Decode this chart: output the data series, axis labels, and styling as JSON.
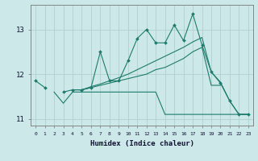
{
  "xlabel": "Humidex (Indice chaleur)",
  "x": [
    0,
    1,
    2,
    3,
    4,
    5,
    6,
    7,
    8,
    9,
    10,
    11,
    12,
    13,
    14,
    15,
    16,
    17,
    18,
    19,
    20,
    21,
    22,
    23
  ],
  "line1": [
    11.85,
    11.7,
    null,
    11.6,
    11.65,
    11.65,
    11.7,
    12.5,
    11.85,
    11.85,
    12.3,
    12.8,
    13.0,
    12.7,
    12.7,
    13.1,
    12.75,
    13.35,
    12.65,
    12.05,
    11.8,
    11.4,
    11.1,
    11.1
  ],
  "line2": [
    null,
    null,
    11.6,
    11.35,
    11.6,
    11.6,
    11.6,
    11.6,
    11.6,
    11.6,
    11.6,
    11.6,
    11.6,
    11.6,
    11.1,
    11.1,
    11.1,
    11.1,
    11.1,
    11.1,
    11.1,
    11.1,
    11.1,
    11.1
  ],
  "line3": [
    null,
    null,
    11.6,
    null,
    11.65,
    11.65,
    11.7,
    11.75,
    11.8,
    11.85,
    11.9,
    11.95,
    12.0,
    12.1,
    12.15,
    12.25,
    12.35,
    12.5,
    12.6,
    11.75,
    11.75,
    null,
    null,
    null
  ],
  "line4": [
    null,
    null,
    11.6,
    null,
    11.65,
    11.65,
    11.72,
    11.78,
    11.85,
    11.92,
    12.0,
    12.1,
    12.2,
    12.3,
    12.4,
    12.5,
    12.6,
    12.72,
    12.82,
    12.05,
    11.82,
    11.4,
    11.1,
    11.1
  ],
  "color": "#1e7b6b",
  "bg_color": "#cce8e8",
  "grid_color": "#b0d0d0",
  "ylim": [
    10.85,
    13.55
  ],
  "yticks": [
    11,
    12,
    13
  ],
  "xlim": [
    -0.5,
    23.5
  ]
}
